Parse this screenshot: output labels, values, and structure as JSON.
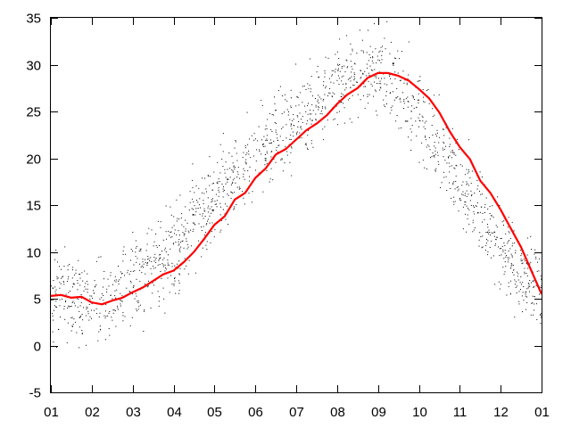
{
  "chart_data": {
    "type": "scatter",
    "title": "",
    "xlabel": "",
    "ylabel": "",
    "xlim": [
      0,
      12
    ],
    "ylim": [
      -5,
      35
    ],
    "grid": false,
    "legend": "none",
    "x_tick_labels": [
      "01",
      "02",
      "03",
      "04",
      "05",
      "06",
      "07",
      "08",
      "09",
      "10",
      "11",
      "12",
      "01"
    ],
    "y_ticks": [
      -5,
      0,
      5,
      10,
      15,
      20,
      25,
      30,
      35
    ],
    "series": [
      {
        "style": "scatter-dots",
        "color": "#000000",
        "points_per_month": 140,
        "spread": 3.2,
        "center_x": [
          0,
          0.5,
          1,
          1.5,
          2,
          2.5,
          3,
          3.5,
          4,
          4.5,
          5,
          5.5,
          6,
          6.5,
          7,
          7.5,
          8,
          8.5,
          9,
          9.5,
          10,
          10.5,
          11,
          11.5,
          12
        ],
        "center_y": [
          5.2,
          5.0,
          4.6,
          5.2,
          6.5,
          8.2,
          10.3,
          13.2,
          15.8,
          18.2,
          20.2,
          22.1,
          23.9,
          25.9,
          28.0,
          29.2,
          29.0,
          27.4,
          25.2,
          21.5,
          18.0,
          14.5,
          11.0,
          7.6,
          5.3
        ]
      },
      {
        "style": "line",
        "color": "#ff0000",
        "x": [
          0,
          0.25,
          0.5,
          0.75,
          1,
          1.25,
          1.5,
          1.75,
          2,
          2.25,
          2.5,
          2.75,
          3,
          3.25,
          3.5,
          3.75,
          4,
          4.25,
          4.5,
          4.75,
          5,
          5.25,
          5.5,
          5.75,
          6,
          6.25,
          6.5,
          6.75,
          7,
          7.25,
          7.5,
          7.75,
          8,
          8.25,
          8.5,
          8.75,
          9,
          9.25,
          9.5,
          9.75,
          10,
          10.25,
          10.5,
          10.75,
          11,
          11.25,
          11.5,
          11.75,
          12
        ],
        "y": [
          5.3,
          5.4,
          5.1,
          5.2,
          4.6,
          4.4,
          4.8,
          5.1,
          5.7,
          6.2,
          6.9,
          7.6,
          8.0,
          8.9,
          10.0,
          11.4,
          12.9,
          13.8,
          15.6,
          16.3,
          17.9,
          18.9,
          20.4,
          21.0,
          22.0,
          23.0,
          23.7,
          24.6,
          25.8,
          26.8,
          27.5,
          28.6,
          29.1,
          29.1,
          28.8,
          28.3,
          27.4,
          26.4,
          24.9,
          22.9,
          21.2,
          19.9,
          17.6,
          16.3,
          14.5,
          12.5,
          10.5,
          8.0,
          5.5
        ]
      }
    ]
  }
}
